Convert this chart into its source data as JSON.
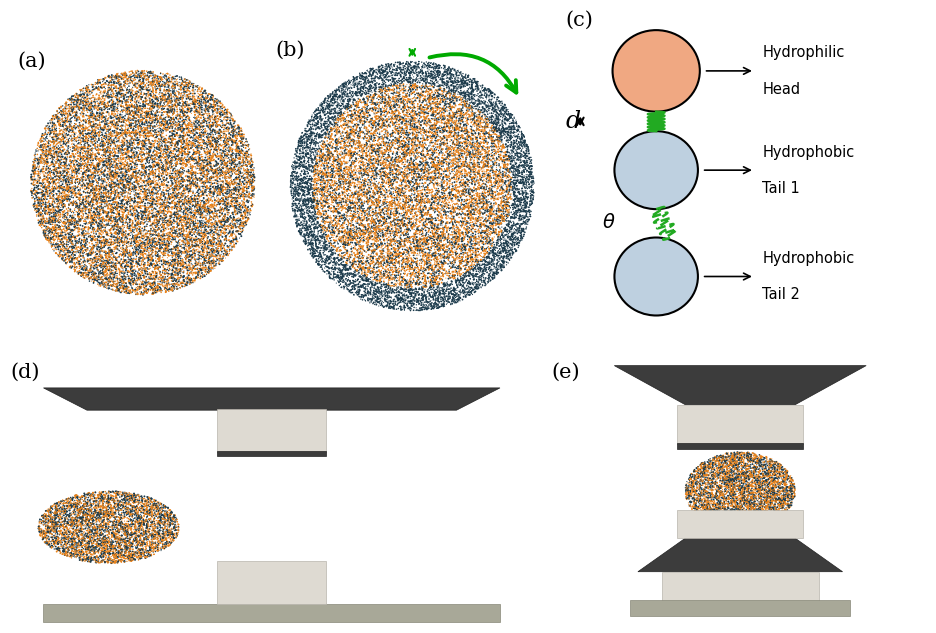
{
  "bg_color": "#ffffff",
  "orange": "#E8821A",
  "dark_teal": "#1B3A4B",
  "head_color": "#F0A882",
  "tail_color": "#BED0E0",
  "green_spring": "#22aa22",
  "dark_gray": "#3C3C3C",
  "light_gray_block": "#DEDAD2",
  "base_gray": "#A8A898",
  "panel_label_fontsize": 15,
  "label_fontsize": 12
}
